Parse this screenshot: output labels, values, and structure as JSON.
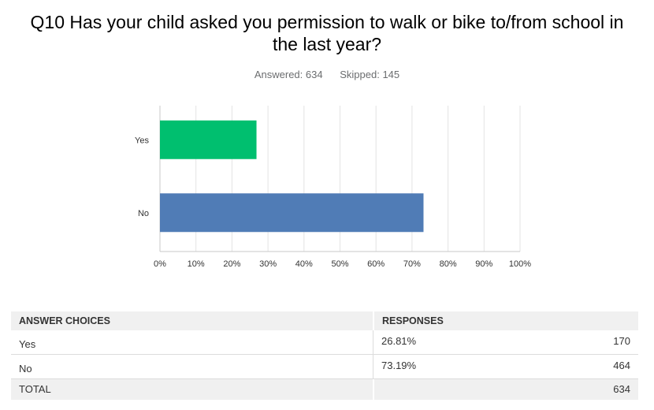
{
  "question": {
    "title": "Q10 Has your child asked you permission to walk or bike to/from school in the last year?",
    "answered_label": "Answered:",
    "answered_value": "634",
    "skipped_label": "Skipped:",
    "skipped_value": "145"
  },
  "chart_data": {
    "type": "bar",
    "orientation": "horizontal",
    "categories": [
      "Yes",
      "No"
    ],
    "values": [
      26.81,
      73.19
    ],
    "colors": [
      "#00bf6f",
      "#507cb6"
    ],
    "xlim": [
      0,
      100
    ],
    "xticks": [
      "0%",
      "10%",
      "20%",
      "30%",
      "40%",
      "50%",
      "60%",
      "70%",
      "80%",
      "90%",
      "100%"
    ],
    "grid": true
  },
  "table": {
    "headers": [
      "ANSWER CHOICES",
      "RESPONSES"
    ],
    "rows": [
      {
        "choice": "Yes",
        "percent": "26.81%",
        "count": "170"
      },
      {
        "choice": "No",
        "percent": "73.19%",
        "count": "464"
      }
    ],
    "total_label": "TOTAL",
    "total_value": "634"
  }
}
